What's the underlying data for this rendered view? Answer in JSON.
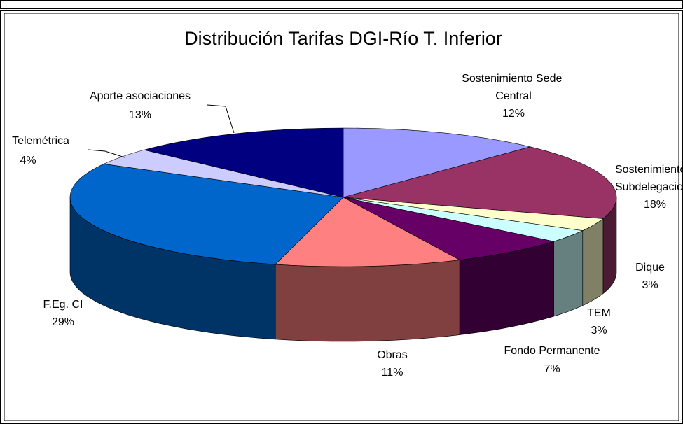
{
  "chart_data": {
    "type": "pie3d",
    "title": "Distribución Tarifas DGI-Río T. Inferior",
    "categories": [
      "Sostenimiento Sede Central",
      "Sostenimiento Subdelegaciones",
      "Dique",
      "TEM",
      "Fondo Permanente",
      "Obras",
      "F.Eg. CI",
      "Telemétrica",
      "Aporte asociaciones"
    ],
    "values": [
      12,
      18,
      3,
      3,
      7,
      11,
      29,
      4,
      13
    ],
    "value_labels": [
      "12%",
      "18%",
      "3%",
      "3%",
      "7%",
      "11%",
      "29%",
      "4%",
      "13%"
    ],
    "colors": [
      "#9999ff",
      "#993366",
      "#ffffcc",
      "#ccffff",
      "#660066",
      "#ff8080",
      "#0066cc",
      "#ccccff",
      "#000080"
    ]
  }
}
